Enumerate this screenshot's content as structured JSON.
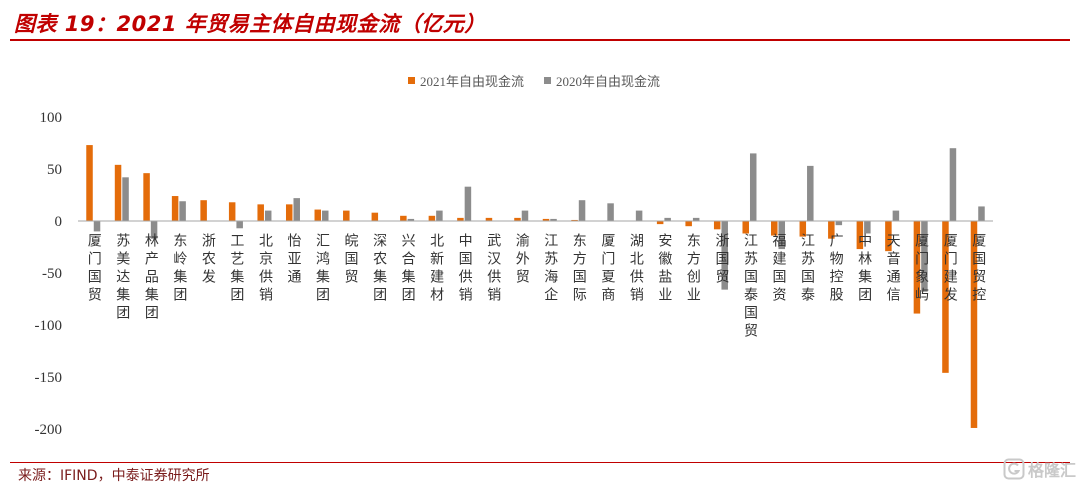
{
  "colors": {
    "title_red": "#c00000",
    "rule_red": "#c00000",
    "source_text": "#7a1c1c",
    "watermark": "#c9c9c9",
    "zero_line": "#a6a6a6"
  },
  "chart_data": {
    "type": "bar",
    "title": "图表 19：2021 年贸易主体自由现金流（亿元）",
    "xlabel": "",
    "ylabel": "",
    "ylim": [
      -200,
      100
    ],
    "yticks": [
      100,
      50,
      0,
      -50,
      -100,
      -150,
      -200
    ],
    "grid": false,
    "legend_position": "top-center",
    "categories": [
      "厦门国贸",
      "苏美达集团",
      "林产品集团",
      "东岭集团",
      "浙农发",
      "工艺集团",
      "北京供销",
      "怡亚通",
      "汇鸿集团",
      "皖国贸",
      "深农集团",
      "兴合集团",
      "北新建材",
      "中国供销",
      "武汉供销",
      "渝外贸",
      "江苏海企",
      "东方国际",
      "厦门夏商",
      "湖北供销",
      "安徽盐业",
      "东方创业",
      "浙国贸",
      "江苏国泰国贸",
      "福建国资",
      "江苏国泰",
      "广物控股",
      "中林集团",
      "天音通信",
      "厦门象屿",
      "厦门建发",
      "厦国贸控"
    ],
    "series": [
      {
        "name": "2021年自由现金流",
        "color": "#e46c0a",
        "values": [
          73,
          54,
          46,
          24,
          20,
          18,
          16,
          16,
          11,
          10,
          8,
          5,
          5,
          3,
          3,
          3,
          2,
          1,
          0,
          0,
          -3,
          -5,
          -8,
          -12,
          -14,
          -15,
          -17,
          -27,
          -29,
          -89,
          -146,
          -199
        ]
      },
      {
        "name": "2020年自由现金流",
        "color": "#8c8c8c",
        "values": [
          -10,
          42,
          -17,
          19,
          0,
          -7,
          10,
          22,
          10,
          0,
          0,
          2,
          10,
          33,
          0,
          10,
          2,
          20,
          17,
          10,
          3,
          3,
          -66,
          65,
          -27,
          53,
          -4,
          -12,
          10,
          -68,
          70,
          14
        ]
      }
    ]
  },
  "footer": {
    "source": "来源：IFIND，中泰证券研究所",
    "watermark": {
      "icon": "gelonghui-logo-icon",
      "text": "格隆汇"
    }
  }
}
